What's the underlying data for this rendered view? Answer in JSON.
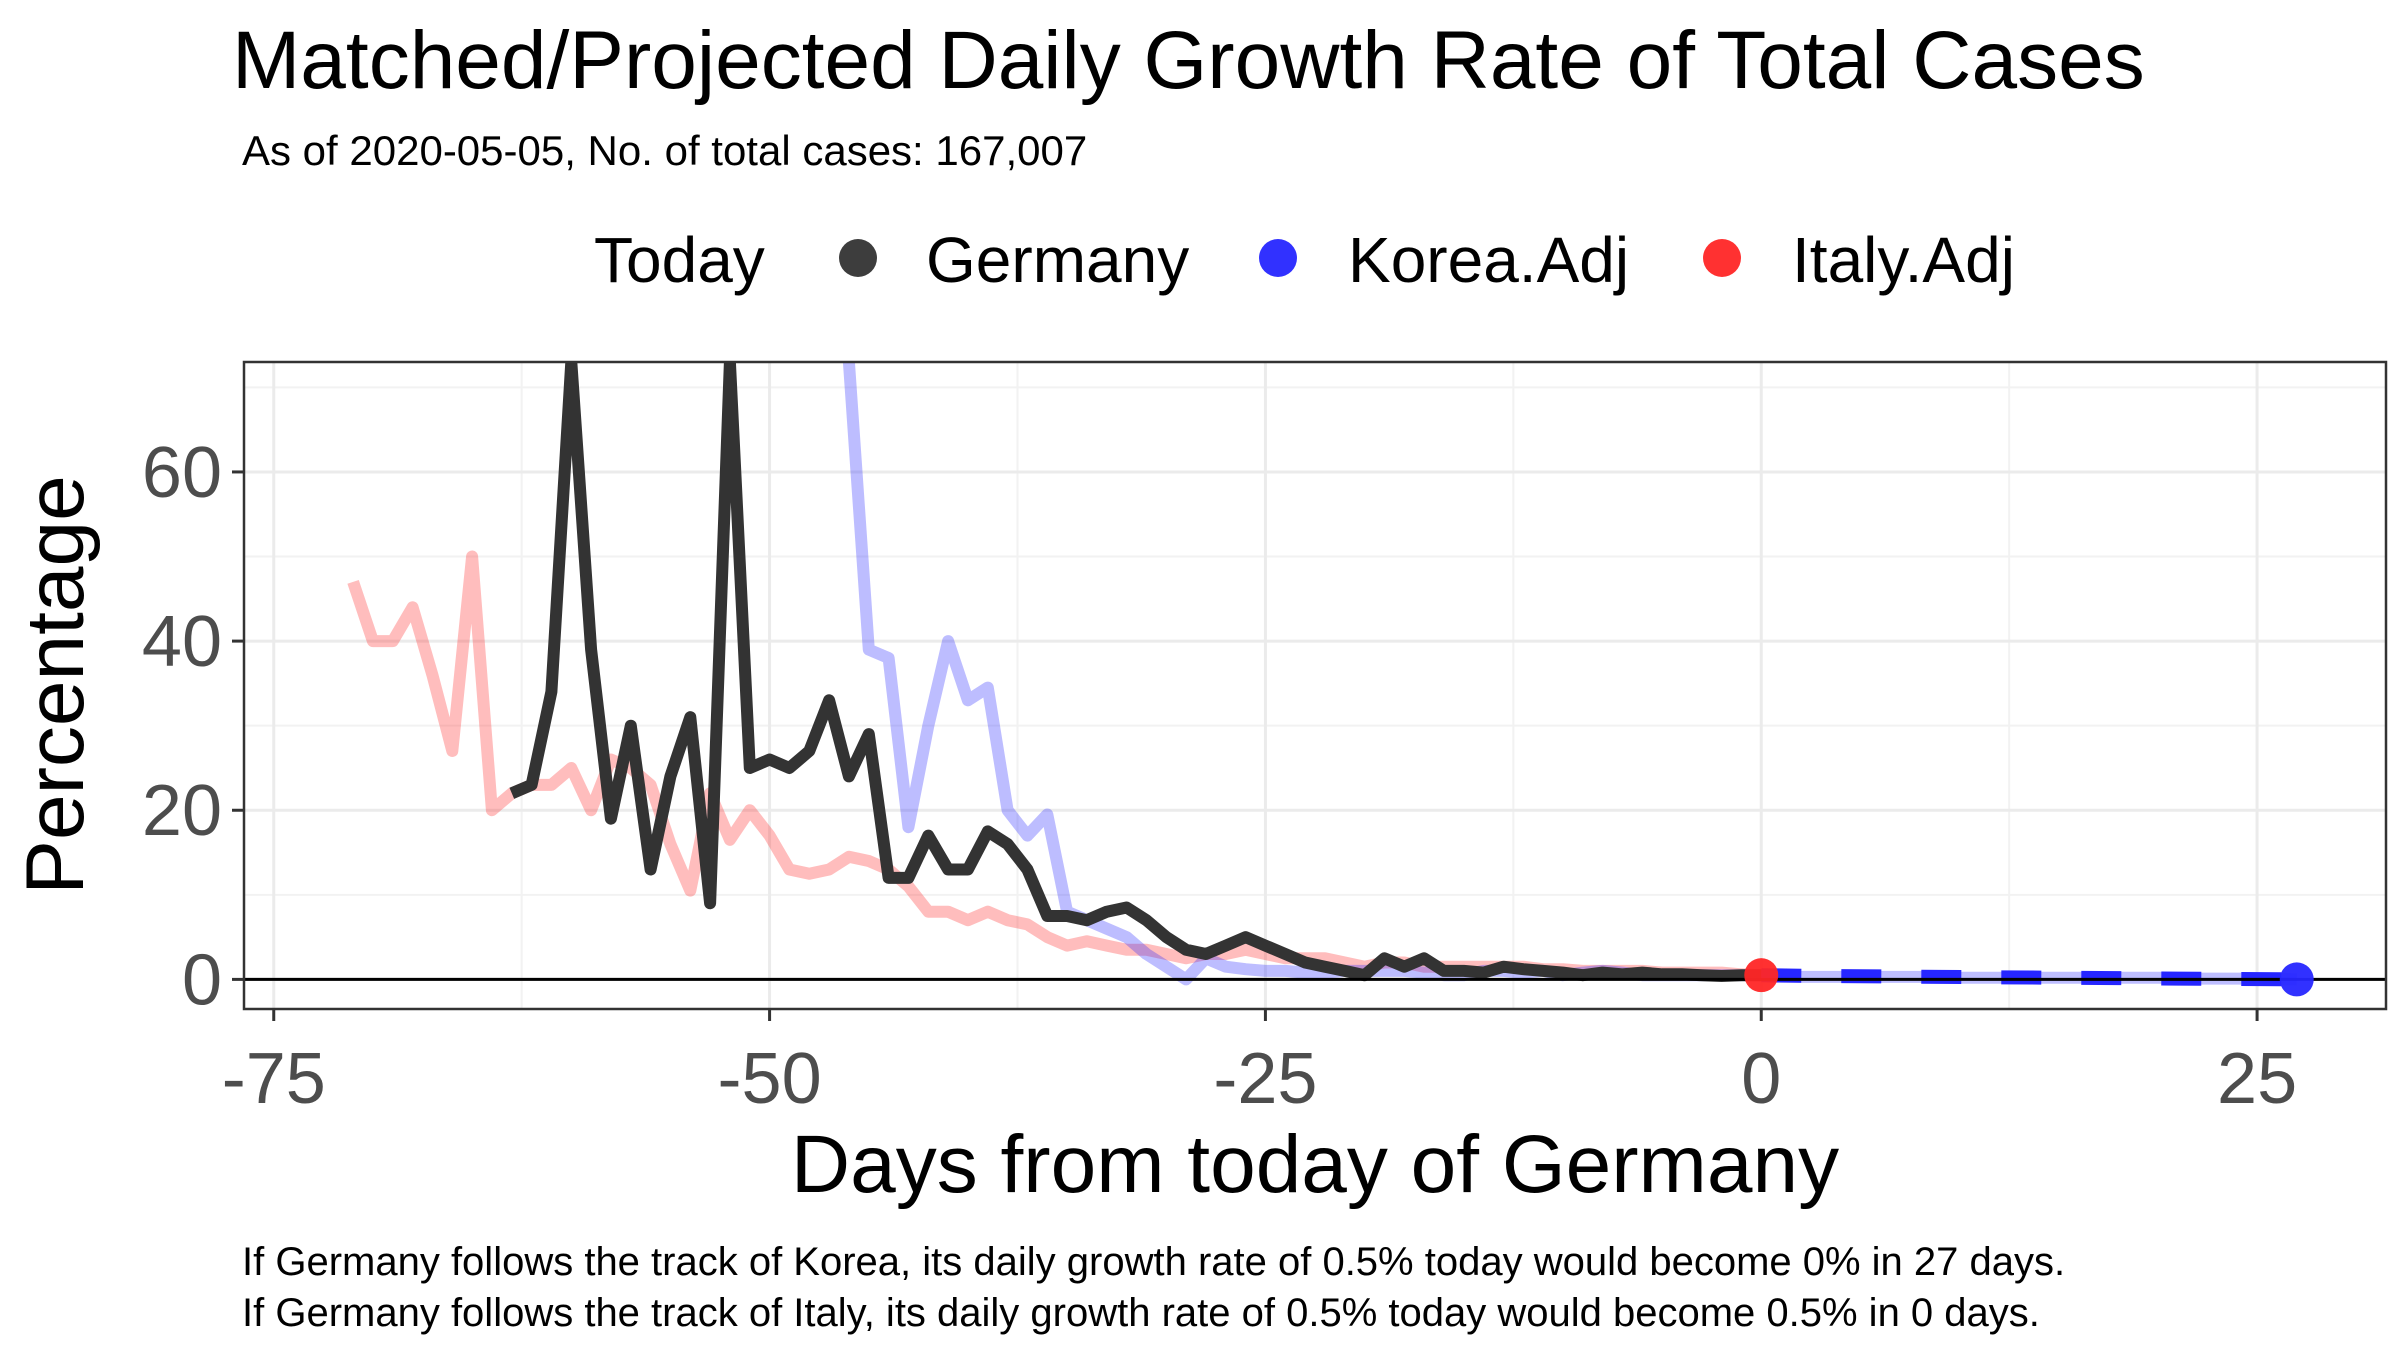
{
  "chart_data": {
    "type": "line",
    "title": "Matched/Projected Daily Growth Rate of Total Cases",
    "subtitle": "As of 2020-05-05, No. of total cases: 167,007",
    "xlabel": "Days from today of Germany",
    "ylabel": "Percentage",
    "xlim": [
      -76.5,
      31.5
    ],
    "ylim": [
      -3.5,
      73
    ],
    "x_ticks": [
      -75,
      -50,
      -25,
      0,
      25
    ],
    "x_tick_labels": [
      "-75",
      "-50",
      "-25",
      "0",
      "25"
    ],
    "y_ticks": [
      0,
      20,
      40,
      60
    ],
    "y_tick_labels": [
      "0",
      "20",
      "40",
      "60"
    ],
    "grid": true,
    "legend": {
      "position": "top",
      "title": "Today",
      "entries": [
        {
          "label": "Germany",
          "color": "#333333"
        },
        {
          "label": "Korea.Adj",
          "color": "#2626ff"
        },
        {
          "label": "Italy.Adj",
          "color": "#ff2626"
        }
      ]
    },
    "reference_line_y": 0,
    "series": [
      {
        "name": "Germany",
        "color": "#333333",
        "opacity": 1,
        "points": [
          [
            -63,
            22
          ],
          [
            -62,
            23
          ],
          [
            -61,
            34
          ],
          [
            -60,
            73
          ],
          [
            -59,
            39
          ],
          [
            -58,
            19
          ],
          [
            -57,
            30
          ],
          [
            -56,
            13
          ],
          [
            -55,
            24
          ],
          [
            -54,
            31
          ],
          [
            -53,
            9
          ],
          [
            -52,
            73
          ],
          [
            -51,
            25
          ],
          [
            -50,
            26
          ],
          [
            -49,
            25
          ],
          [
            -48,
            27
          ],
          [
            -47,
            33
          ],
          [
            -46,
            24
          ],
          [
            -45,
            29
          ],
          [
            -44,
            12
          ],
          [
            -43,
            12
          ],
          [
            -42,
            17
          ],
          [
            -41,
            13
          ],
          [
            -40,
            13
          ],
          [
            -39,
            17.5
          ],
          [
            -38,
            16
          ],
          [
            -37,
            13
          ],
          [
            -36,
            7.5
          ],
          [
            -35,
            7.5
          ],
          [
            -34,
            7
          ],
          [
            -33,
            8
          ],
          [
            -32,
            8.5
          ],
          [
            -31,
            7
          ],
          [
            -30,
            5
          ],
          [
            -29,
            3.5
          ],
          [
            -28,
            3
          ],
          [
            -27,
            4
          ],
          [
            -26,
            5
          ],
          [
            -25,
            4
          ],
          [
            -24,
            3
          ],
          [
            -23,
            2
          ],
          [
            -22,
            1.5
          ],
          [
            -21,
            1
          ],
          [
            -20,
            0.5
          ],
          [
            -19,
            2.5
          ],
          [
            -18,
            1.5
          ],
          [
            -17,
            2.5
          ],
          [
            -16,
            1
          ],
          [
            -15,
            1
          ],
          [
            -14,
            0.8
          ],
          [
            -13,
            1.5
          ],
          [
            -12,
            1.2
          ],
          [
            -11,
            1
          ],
          [
            -10,
            0.8
          ],
          [
            -9,
            0.5
          ],
          [
            -8,
            0.8
          ],
          [
            -7,
            0.6
          ],
          [
            -6,
            0.8
          ],
          [
            -5,
            0.6
          ],
          [
            -4,
            0.6
          ],
          [
            -3,
            0.5
          ],
          [
            -2,
            0.4
          ],
          [
            -1,
            0.5
          ],
          [
            0,
            0.5
          ]
        ]
      },
      {
        "name": "Korea.Adj",
        "color": "#2626ff",
        "opacity": 0.3,
        "points": [
          [
            -46,
            73
          ],
          [
            -45,
            39
          ],
          [
            -44,
            38
          ],
          [
            -43,
            18
          ],
          [
            -42,
            30
          ],
          [
            -41,
            40
          ],
          [
            -40,
            33
          ],
          [
            -39,
            34.5
          ],
          [
            -38,
            20
          ],
          [
            -37,
            17
          ],
          [
            -36,
            19.5
          ],
          [
            -35,
            8
          ],
          [
            -34,
            7
          ],
          [
            -33,
            6
          ],
          [
            -32,
            5
          ],
          [
            -31,
            3
          ],
          [
            -30,
            1.5
          ],
          [
            -29,
            0
          ],
          [
            -28,
            2.5
          ],
          [
            -27,
            1.5
          ],
          [
            -26,
            1.2
          ],
          [
            -25,
            1
          ],
          [
            -24,
            1
          ],
          [
            -23,
            0.8
          ],
          [
            -22,
            0.8
          ],
          [
            -21,
            1
          ],
          [
            -20,
            1
          ],
          [
            -19,
            1
          ],
          [
            -18,
            1
          ],
          [
            -17,
            0.8
          ],
          [
            -16,
            0.5
          ],
          [
            -15,
            0.5
          ],
          [
            -14,
            1
          ],
          [
            -13,
            1
          ],
          [
            -12,
            0.8
          ],
          [
            -11,
            1
          ],
          [
            -10,
            0.5
          ],
          [
            -9,
            0.8
          ],
          [
            -8,
            1
          ],
          [
            -7,
            0.8
          ],
          [
            -6,
            0.5
          ],
          [
            -5,
            0.5
          ],
          [
            -4,
            0.5
          ],
          [
            -3,
            0.5
          ],
          [
            -2,
            0.5
          ],
          [
            -1,
            0.5
          ],
          [
            0,
            0.5
          ],
          [
            1,
            0.3
          ],
          [
            3,
            0.3
          ],
          [
            5,
            0.3
          ],
          [
            8,
            0.3
          ],
          [
            10,
            0.2
          ],
          [
            13,
            0.2
          ],
          [
            15,
            0.2
          ],
          [
            18,
            0.2
          ],
          [
            20,
            0.2
          ],
          [
            22,
            0.1
          ],
          [
            25,
            0.1
          ],
          [
            27,
            0
          ]
        ]
      },
      {
        "name": "Korea.Adj projection",
        "color": "#2626ff",
        "opacity": 1,
        "dashed": true,
        "points": [
          [
            0,
            0.5
          ],
          [
            3,
            0.4
          ],
          [
            6,
            0.35
          ],
          [
            9,
            0.3
          ],
          [
            12,
            0.25
          ],
          [
            15,
            0.2
          ],
          [
            18,
            0.15
          ],
          [
            21,
            0.1
          ],
          [
            24,
            0.05
          ],
          [
            27,
            0
          ]
        ]
      },
      {
        "name": "Italy.Adj",
        "color": "#ff2626",
        "opacity": 0.3,
        "points": [
          [
            -71,
            47
          ],
          [
            -70,
            40
          ],
          [
            -69,
            40
          ],
          [
            -68,
            44
          ],
          [
            -67,
            36
          ],
          [
            -66,
            27
          ],
          [
            -65,
            50
          ],
          [
            -64,
            20
          ],
          [
            -63,
            22
          ],
          [
            -62,
            23
          ],
          [
            -61,
            23
          ],
          [
            -60,
            25
          ],
          [
            -59,
            20
          ],
          [
            -58,
            26
          ],
          [
            -57,
            25
          ],
          [
            -56,
            23
          ],
          [
            -55,
            16
          ],
          [
            -54,
            10.5
          ],
          [
            -53,
            22
          ],
          [
            -52,
            16.5
          ],
          [
            -51,
            20
          ],
          [
            -50,
            17
          ],
          [
            -49,
            13
          ],
          [
            -48,
            12.5
          ],
          [
            -47,
            13
          ],
          [
            -46,
            14.5
          ],
          [
            -45,
            14
          ],
          [
            -44,
            13
          ],
          [
            -43,
            11
          ],
          [
            -42,
            8
          ],
          [
            -41,
            8
          ],
          [
            -40,
            7
          ],
          [
            -39,
            8
          ],
          [
            -38,
            7
          ],
          [
            -37,
            6.5
          ],
          [
            -36,
            5
          ],
          [
            -35,
            4
          ],
          [
            -34,
            4.5
          ],
          [
            -33,
            4
          ],
          [
            -32,
            3.5
          ],
          [
            -31,
            3.5
          ],
          [
            -30,
            3
          ],
          [
            -29,
            2.5
          ],
          [
            -28,
            3
          ],
          [
            -27,
            3
          ],
          [
            -26,
            3.5
          ],
          [
            -25,
            3
          ],
          [
            -24,
            2.5
          ],
          [
            -23,
            2.5
          ],
          [
            -22,
            2.5
          ],
          [
            -21,
            2
          ],
          [
            -20,
            1.5
          ],
          [
            -19,
            2
          ],
          [
            -18,
            2
          ],
          [
            -17,
            1.5
          ],
          [
            -16,
            1.5
          ],
          [
            -15,
            1.5
          ],
          [
            -14,
            1.5
          ],
          [
            -13,
            1.5
          ],
          [
            -12,
            1.5
          ],
          [
            -11,
            1.2
          ],
          [
            -10,
            1.2
          ],
          [
            -9,
            1
          ],
          [
            -8,
            1
          ],
          [
            -7,
            1
          ],
          [
            -6,
            1
          ],
          [
            -5,
            0.8
          ],
          [
            -4,
            0.8
          ],
          [
            -3,
            0.8
          ],
          [
            -2,
            0.8
          ],
          [
            -1,
            0.6
          ],
          [
            0,
            0.5
          ]
        ]
      }
    ],
    "markers": [
      {
        "series": "Italy.Adj",
        "x": 0,
        "y": 0.5,
        "color": "#ff2626"
      },
      {
        "series": "Korea.Adj",
        "x": 27,
        "y": 0,
        "color": "#2626ff"
      }
    ],
    "captions": [
      "If Germany follows the track of Korea, its daily growth rate of 0.5% today would become 0% in 27 days.",
      "If Germany follows the track of Italy, its daily growth rate of 0.5% today would become 0.5% in 0 days."
    ]
  }
}
